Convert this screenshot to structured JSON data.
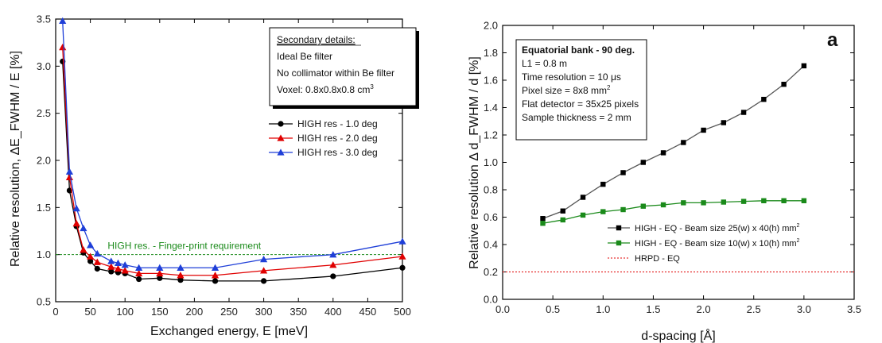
{
  "chart_data": [
    {
      "type": "line",
      "xlabel": "Exchanged energy, E [meV]",
      "ylabel": "Relative resolution, ΔE_FWHM / E [%]",
      "xlim": [
        0,
        500
      ],
      "ylim": [
        0.5,
        3.5
      ],
      "xticks": [
        0,
        50,
        100,
        150,
        200,
        250,
        300,
        350,
        400,
        450,
        500
      ],
      "yticks": [
        0.5,
        1.0,
        1.5,
        2.0,
        2.5,
        3.0,
        3.5
      ],
      "xtick_labels": [
        "0",
        "50",
        "100",
        "150",
        "200",
        "250",
        "300",
        "350",
        "400",
        "450",
        "500"
      ],
      "ytick_labels": [
        "0.5",
        "1.0",
        "1.5",
        "2.0",
        "2.5",
        "3.0",
        "3.5"
      ],
      "legend_position": "center-right",
      "series": [
        {
          "name": "HIGH res - 1.0 deg",
          "color": "#000000",
          "marker": "circle",
          "x": [
            10,
            20,
            30,
            40,
            50,
            60,
            80,
            90,
            100,
            120,
            150,
            180,
            230,
            300,
            400,
            500
          ],
          "y": [
            3.05,
            1.68,
            1.3,
            1.02,
            0.93,
            0.85,
            0.82,
            0.81,
            0.8,
            0.74,
            0.75,
            0.73,
            0.72,
            0.72,
            0.77,
            0.86
          ]
        },
        {
          "name": "HIGH res - 2.0 deg",
          "color": "#e00000",
          "marker": "triangle",
          "x": [
            10,
            20,
            30,
            40,
            50,
            60,
            80,
            90,
            100,
            120,
            150,
            180,
            230,
            300,
            400,
            500
          ],
          "y": [
            3.2,
            1.82,
            1.33,
            1.05,
            0.98,
            0.92,
            0.87,
            0.85,
            0.83,
            0.8,
            0.8,
            0.78,
            0.78,
            0.83,
            0.89,
            0.98
          ]
        },
        {
          "name": "HIGH res - 3.0 deg",
          "color": "#1f3fd8",
          "marker": "triangle",
          "x": [
            10,
            20,
            30,
            40,
            50,
            60,
            80,
            90,
            100,
            120,
            150,
            180,
            230,
            300,
            400,
            500
          ],
          "y": [
            3.48,
            1.88,
            1.49,
            1.28,
            1.1,
            1.01,
            0.93,
            0.91,
            0.89,
            0.86,
            0.86,
            0.86,
            0.86,
            0.95,
            1.0,
            1.14
          ]
        }
      ],
      "reference_line": {
        "y": 1.0,
        "label": "HIGH res. - Finger-print requirement",
        "color": "#1a8a1a"
      },
      "details_box": {
        "title": "Secondary details:",
        "lines": [
          "Ideal Be filter",
          "No collimator within Be filter"
        ],
        "voxel_text": "Voxel: 0.8x0.8x0.8 cm",
        "voxel_sup": "3"
      }
    },
    {
      "type": "line",
      "panel_label": "a",
      "xlabel": "d-spacing [Å]",
      "ylabel": "Relative resolution  Δ d_FWHM / d  [%]",
      "xlim": [
        0.0,
        3.5
      ],
      "ylim": [
        0.0,
        2.0
      ],
      "xticks": [
        0.0,
        0.5,
        1.0,
        1.5,
        2.0,
        2.5,
        3.0,
        3.5
      ],
      "yticks": [
        0.0,
        0.2,
        0.4,
        0.6,
        0.8,
        1.0,
        1.2,
        1.4,
        1.6,
        1.8,
        2.0
      ],
      "xtick_labels": [
        "0.0",
        "0.5",
        "1.0",
        "1.5",
        "2.0",
        "2.5",
        "3.0",
        "3.5"
      ],
      "ytick_labels": [
        "0.0",
        "0.2",
        "0.4",
        "0.6",
        "0.8",
        "1.0",
        "1.2",
        "1.4",
        "1.6",
        "1.8",
        "2.0"
      ],
      "legend_position": "lower-right",
      "series": [
        {
          "name": "HIGH - EQ - Beam size 25(w) x 40(h) mm",
          "name_sup": "2",
          "color": "#000000",
          "line_color": "#555555",
          "marker": "square",
          "x": [
            0.4,
            0.6,
            0.8,
            1.0,
            1.2,
            1.4,
            1.6,
            1.8,
            2.0,
            2.2,
            2.4,
            2.6,
            2.8,
            3.0
          ],
          "y": [
            0.59,
            0.645,
            0.745,
            0.84,
            0.925,
            1.0,
            1.07,
            1.145,
            1.235,
            1.29,
            1.365,
            1.46,
            1.57,
            1.705
          ]
        },
        {
          "name": "HIGH - EQ - Beam size 10(w) x 10(h) mm",
          "name_sup": "2",
          "color": "#1a8a1a",
          "line_color": "#1a8a1a",
          "marker": "square",
          "x": [
            0.4,
            0.6,
            0.8,
            1.0,
            1.2,
            1.4,
            1.6,
            1.8,
            2.0,
            2.2,
            2.4,
            2.6,
            2.8,
            3.0
          ],
          "y": [
            0.555,
            0.58,
            0.615,
            0.64,
            0.655,
            0.68,
            0.69,
            0.705,
            0.705,
            0.71,
            0.715,
            0.72,
            0.72,
            0.72
          ]
        },
        {
          "name": "HRPD - EQ",
          "color": "#e00000",
          "line_color": "#e00000",
          "marker": "none",
          "dashed": true,
          "x": [
            0.0,
            3.5
          ],
          "y": [
            0.2,
            0.2
          ]
        }
      ],
      "details_box": {
        "title": "Equatorial bank - 90 deg.",
        "lines": [
          "L1 = 0.8 m",
          "Time resolution = 10 μs"
        ],
        "pixel_text": "Pixel size = 8x8 mm",
        "pixel_sup": "2",
        "lines_after": [
          "Flat detector = 35x25 pixels",
          "Sample thickness = 2 mm"
        ]
      }
    }
  ]
}
